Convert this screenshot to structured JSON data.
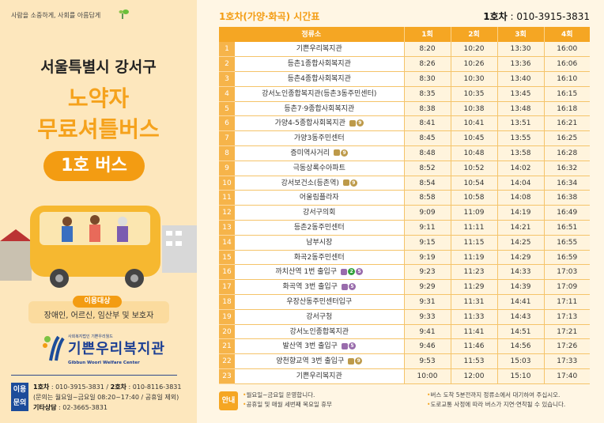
{
  "left": {
    "slogan": "사람을 소중하게, 사회를 아름답게",
    "district": "서울특별시 강서구",
    "title_line1": "노약자",
    "title_line2": "무료셔틀버스",
    "bus_label": "1호 버스",
    "target_label": "이용대상",
    "target_text": "장애인, 어르신, 임산부 및 보호자",
    "logo_sub": "사회복지법인 기쁜우리월드",
    "logo_main": "기쁜우리복지관",
    "logo_en": "Gibbun Woori Welfare Center",
    "contact_tag": "이용문의",
    "contact_bus1_label": "1호차",
    "contact_bus1": " : 010-3915-3831 / ",
    "contact_bus2_label": "2호차",
    "contact_bus2": " : 010-8116-3831",
    "contact_hours": "(문의는 월요일~금요일 08:20~17:40 / 공휴일 제외)",
    "contact_other_label": "기타상담",
    "contact_other": " : 02-3665-3831"
  },
  "timetable": {
    "title": "1호차(가양·화곡) 시간표",
    "phone_label": "1호차",
    "phone": " : 010-3915-3831",
    "headers": [
      "정류소",
      "1회",
      "2회",
      "3회",
      "4회"
    ],
    "rows": [
      {
        "no": "1",
        "stop": "기쁜우리복지관",
        "lines": [],
        "times": [
          "8:20",
          "10:20",
          "13:30",
          "16:00"
        ]
      },
      {
        "no": "2",
        "stop": "등촌1종합사회복지관",
        "lines": [],
        "times": [
          "8:26",
          "10:26",
          "13:36",
          "16:06"
        ]
      },
      {
        "no": "3",
        "stop": "등촌4종합사회복지관",
        "lines": [],
        "times": [
          "8:30",
          "10:30",
          "13:40",
          "16:10"
        ]
      },
      {
        "no": "4",
        "stop": "강서노인종합복지관(등촌3동주민센터)",
        "lines": [],
        "times": [
          "8:35",
          "10:35",
          "13:45",
          "16:15"
        ]
      },
      {
        "no": "5",
        "stop": "등촌7·9종합사회복지관",
        "lines": [],
        "times": [
          "8:38",
          "10:38",
          "13:48",
          "16:18"
        ]
      },
      {
        "no": "6",
        "stop": "가양4-5종합사회복지관",
        "lines": [
          "9"
        ],
        "times": [
          "8:41",
          "10:41",
          "13:51",
          "16:21"
        ]
      },
      {
        "no": "7",
        "stop": "가양3동주민센터",
        "lines": [],
        "times": [
          "8:45",
          "10:45",
          "13:55",
          "16:25"
        ]
      },
      {
        "no": "8",
        "stop": "증미역사거리",
        "lines": [
          "9"
        ],
        "times": [
          "8:48",
          "10:48",
          "13:58",
          "16:28"
        ]
      },
      {
        "no": "9",
        "stop": "극동상록수아파트",
        "lines": [],
        "times": [
          "8:52",
          "10:52",
          "14:02",
          "16:32"
        ]
      },
      {
        "no": "10",
        "stop": "강서보건소(등촌역)",
        "lines": [
          "9"
        ],
        "times": [
          "8:54",
          "10:54",
          "14:04",
          "16:34"
        ]
      },
      {
        "no": "11",
        "stop": "어울림플라자",
        "lines": [],
        "times": [
          "8:58",
          "10:58",
          "14:08",
          "16:38"
        ]
      },
      {
        "no": "12",
        "stop": "강서구의회",
        "lines": [],
        "times": [
          "9:09",
          "11:09",
          "14:19",
          "16:49"
        ]
      },
      {
        "no": "13",
        "stop": "등촌2동주민센터",
        "lines": [],
        "times": [
          "9:11",
          "11:11",
          "14:21",
          "16:51"
        ]
      },
      {
        "no": "14",
        "stop": "남부시장",
        "lines": [],
        "times": [
          "9:15",
          "11:15",
          "14:25",
          "16:55"
        ]
      },
      {
        "no": "15",
        "stop": "화곡2동주민센터",
        "lines": [],
        "times": [
          "9:19",
          "11:19",
          "14:29",
          "16:59"
        ]
      },
      {
        "no": "16",
        "stop": "까치산역 1번 출입구",
        "lines": [
          "2",
          "5"
        ],
        "times": [
          "9:23",
          "11:23",
          "14:33",
          "17:03"
        ]
      },
      {
        "no": "17",
        "stop": "화곡역 3번 출입구",
        "lines": [
          "5"
        ],
        "times": [
          "9:29",
          "11:29",
          "14:39",
          "17:09"
        ]
      },
      {
        "no": "18",
        "stop": "우장산동주민센터입구",
        "lines": [],
        "times": [
          "9:31",
          "11:31",
          "14:41",
          "17:11"
        ]
      },
      {
        "no": "19",
        "stop": "강서구청",
        "lines": [],
        "times": [
          "9:33",
          "11:33",
          "14:43",
          "17:13"
        ]
      },
      {
        "no": "20",
        "stop": "강서노인종합복지관",
        "lines": [],
        "times": [
          "9:41",
          "11:41",
          "14:51",
          "17:21"
        ]
      },
      {
        "no": "21",
        "stop": "발산역 3번 출입구",
        "lines": [
          "5"
        ],
        "times": [
          "9:46",
          "11:46",
          "14:56",
          "17:26"
        ]
      },
      {
        "no": "22",
        "stop": "양천향교역 3번 출입구",
        "lines": [
          "9"
        ],
        "times": [
          "9:53",
          "11:53",
          "15:03",
          "17:33"
        ]
      },
      {
        "no": "23",
        "stop": "기쁜우리복지관",
        "lines": [],
        "times": [
          "10:00",
          "12:00",
          "15:10",
          "17:40"
        ]
      }
    ]
  },
  "line_colors": {
    "2": "#33a23d",
    "5": "#996cac",
    "9": "#bd9a4a"
  },
  "notice": {
    "tag": "안내",
    "left": [
      "월요일~금요일 운영합니다.",
      "공휴일 및 매월 세번째 목요일 휴무"
    ],
    "right": [
      "버스 도착 5분전까지 정류소에서 대기하여 주십시오.",
      "도로교통 사정에 따라 버스가 지연·연착될 수 있습니다."
    ]
  },
  "colors": {
    "accent": "#f5a623",
    "left_bg": "#fde7bd",
    "page_bg": "#fff6e4",
    "navy": "#1c4c9a"
  }
}
